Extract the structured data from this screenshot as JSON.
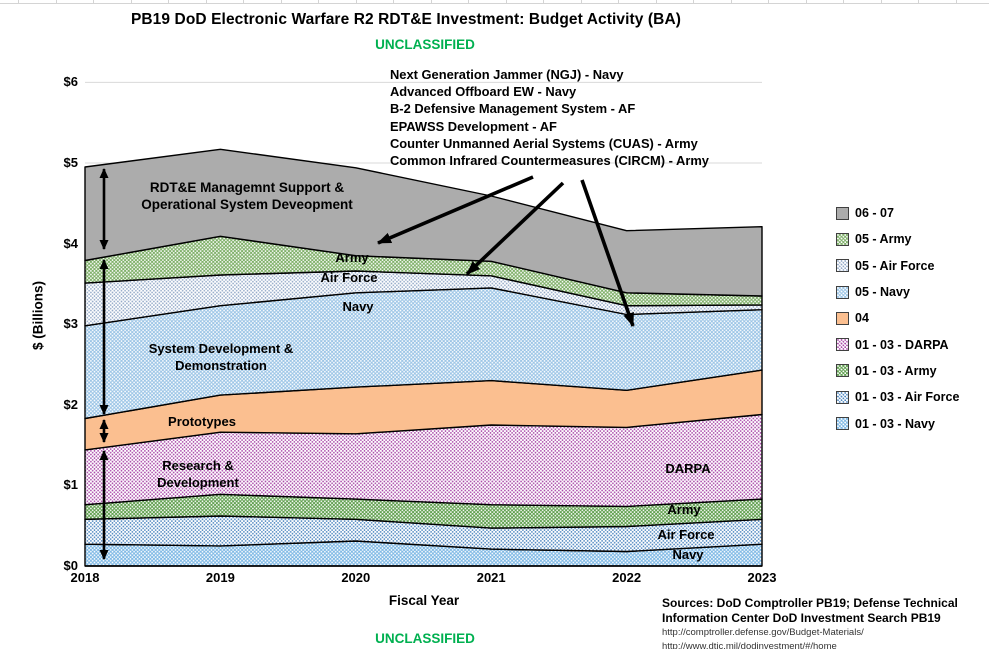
{
  "page": {
    "title": "PB19 DoD Electronic Warfare R2 RDT&E Investment: Budget Activity (BA)",
    "classification_top": "UNCLASSIFIED",
    "classification_bottom": "UNCLASSIFIED",
    "classification_color": "#00B050",
    "sources_text": "Sources: DoD Comptroller PB19; Defense Technical Information Center DoD Investment Search PB19",
    "source_urls": [
      "http://comptroller.defense.gov/Budget-Materials/",
      "http://www.dtic.mil/dodinvestment/#/home"
    ]
  },
  "annotation_block": {
    "lines": [
      "Next Generation Jammer (NGJ) - Navy",
      "Advanced Offboard EW - Navy",
      "B-2 Defensive Management System - AF",
      "EPAWSS Development - AF",
      "Counter Unmanned Aerial Systems (CUAS) - Army",
      "Common Infrared Countermeasures (CIRCM) - Army"
    ]
  },
  "chart_data": {
    "type": "area",
    "stacked": true,
    "title": "PB19 DoD Electronic Warfare R2 RDT&E Investment: Budget Activity (BA)",
    "xlabel": "Fiscal Year",
    "ylabel": "$ (Billions)",
    "units": "billions USD",
    "x": [
      2018,
      2019,
      2020,
      2021,
      2022,
      2023
    ],
    "ylim": [
      0,
      6
    ],
    "ytick_values": [
      0,
      1,
      2,
      3,
      4,
      5,
      6
    ],
    "ytick_labels": [
      "$0",
      "$1",
      "$2",
      "$3",
      "$4",
      "$5",
      "$6"
    ],
    "grid": "horizontal",
    "gridline_color": "#D9D9D9",
    "legend_position": "right",
    "series": [
      {
        "key": "ba0103-navy",
        "label": "01 - 03 - Navy",
        "values": [
          0.27,
          0.25,
          0.31,
          0.21,
          0.18,
          0.27
        ],
        "fill": "#7FB9E5",
        "dot": "#FFFFFF"
      },
      {
        "key": "ba0103-af",
        "label": "01 - 03 - Air Force",
        "values": [
          0.31,
          0.37,
          0.27,
          0.26,
          0.31,
          0.31
        ],
        "fill": "#FFFFFF",
        "dot": "#4D86C0"
      },
      {
        "key": "ba0103-army",
        "label": "01 - 03 - Army",
        "values": [
          0.18,
          0.27,
          0.25,
          0.29,
          0.25,
          0.25
        ],
        "fill": "#61A050",
        "dot": "#FFFFFF"
      },
      {
        "key": "ba0103-darpa",
        "label": "01 - 03 - DARPA",
        "values": [
          0.68,
          0.77,
          0.81,
          0.99,
          0.98,
          1.05
        ],
        "fill": "#FFFFFF",
        "dot": "#A846A8"
      },
      {
        "key": "ba04",
        "label": "04",
        "values": [
          0.39,
          0.46,
          0.58,
          0.55,
          0.46,
          0.55
        ],
        "fill": "#FBBF90",
        "dot": null
      },
      {
        "key": "ba05-navy",
        "label": "05 - Navy",
        "values": [
          1.15,
          1.11,
          1.17,
          1.15,
          0.94,
          0.75
        ],
        "fill": "#9CC5E6",
        "dot": "#FFFFFF"
      },
      {
        "key": "ba05-af",
        "label": "05 - Air Force",
        "values": [
          0.53,
          0.38,
          0.27,
          0.15,
          0.11,
          0.06
        ],
        "fill": "#FFFFFF",
        "dot": "#93A9C8"
      },
      {
        "key": "ba05-army",
        "label": "05 - Army",
        "values": [
          0.28,
          0.48,
          0.19,
          0.18,
          0.16,
          0.11
        ],
        "fill": "#7FB069",
        "dot": "#FFFFFF"
      },
      {
        "key": "ba0607",
        "label": "06 - 07",
        "values": [
          1.16,
          1.08,
          1.09,
          0.81,
          0.77,
          0.86
        ],
        "fill": "#ACACAC",
        "dot": null
      }
    ],
    "band_labels": {
      "rdte": [
        "RDT&E Managemnt Support &",
        "Operational System Deveopment"
      ],
      "army05": [
        "Army"
      ],
      "af05": [
        "Air Force"
      ],
      "navy05": [
        "Navy"
      ],
      "sdd": [
        "System Development &",
        "Demonstration"
      ],
      "prototypes": [
        "Prototypes"
      ],
      "rnd": [
        "Research &",
        "Development"
      ],
      "darpa": [
        "DARPA"
      ],
      "army01": [
        "Army"
      ],
      "af01": [
        "Air Force"
      ],
      "navy01": [
        "Navy"
      ]
    }
  }
}
